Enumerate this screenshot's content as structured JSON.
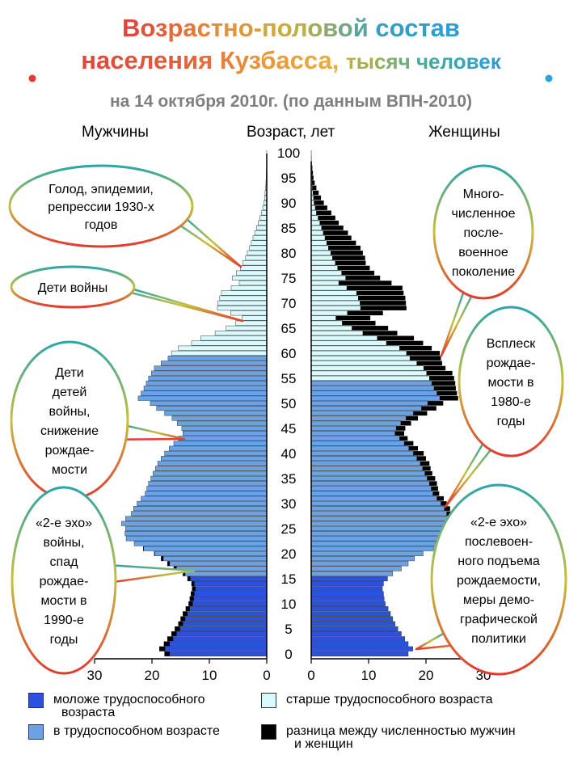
{
  "title": {
    "line1": "Возрастно-половой состав",
    "line2_main": "населения Кузбасса,",
    "line2_small": "тысяч человек"
  },
  "subtitle": "на 14 октября 2010г. (по данным ВПН-2010)",
  "headers": {
    "men": "Мужчины",
    "age": "Возраст, лет",
    "women": "Женщины"
  },
  "colors": {
    "young": "#2a52e0",
    "working": "#6aa2e6",
    "old": "#d9fbfd",
    "difference": "#000000",
    "bar_outline": "#3a3a3a"
  },
  "legend": [
    {
      "key": "young",
      "line1": "моложе трудоспособного",
      "line2": "возраста"
    },
    {
      "key": "old",
      "line1": "старше трудоспособного возраста",
      "line2": ""
    },
    {
      "key": "working",
      "line1": "в трудоспособном возрасте",
      "line2": ""
    },
    {
      "key": "difference",
      "line1": "разница между численностью мужчин",
      "line2": "и женщин"
    }
  ],
  "callouts": [
    {
      "id": "famine",
      "lines": [
        "Голод, эпидемии,",
        "репрессии 1930-х",
        "годов"
      ]
    },
    {
      "id": "war-children",
      "lines": [
        "Дети войны"
      ]
    },
    {
      "id": "war-grandchildren",
      "lines": [
        "Дети",
        "детей",
        "войны,",
        "снижение",
        "рождае-",
        "мости"
      ]
    },
    {
      "id": "echo2-left",
      "lines": [
        "«2-е эхо»",
        "войны,",
        "спад",
        "рождае-",
        "мости в",
        "1990-е",
        "годы"
      ]
    },
    {
      "id": "postwar",
      "lines": [
        "Много-",
        "численное",
        "после-",
        "военное",
        "поколение"
      ]
    },
    {
      "id": "boom80",
      "lines": [
        "Всплеск",
        "рождае-",
        "мости в",
        "1980-е",
        "годы"
      ]
    },
    {
      "id": "echo2-right",
      "lines": [
        "«2-е эхо»",
        "послевоен-",
        "ного подъема",
        "рождаемости,",
        "меры демо-",
        "графической",
        "политики"
      ]
    }
  ],
  "chart_data": {
    "type": "bar",
    "orientation": "horizontal-pyramid",
    "age_axis": {
      "label": "Возраст, лет",
      "ticks": [
        0,
        5,
        10,
        15,
        20,
        25,
        30,
        35,
        40,
        45,
        50,
        55,
        60,
        65,
        70,
        75,
        80,
        85,
        90,
        95,
        100
      ]
    },
    "x_axis_men": {
      "ticks": [
        30,
        20,
        10,
        0
      ],
      "range": [
        30,
        0
      ]
    },
    "x_axis_women": {
      "ticks": [
        0,
        10,
        20,
        30
      ],
      "range": [
        0,
        30
      ]
    },
    "working_age": {
      "men": [
        16,
        59
      ],
      "women": [
        16,
        54
      ]
    },
    "ages": [
      0,
      1,
      2,
      3,
      4,
      5,
      6,
      7,
      8,
      9,
      10,
      11,
      12,
      13,
      14,
      15,
      16,
      17,
      18,
      19,
      20,
      21,
      22,
      23,
      24,
      25,
      26,
      27,
      28,
      29,
      30,
      31,
      32,
      33,
      34,
      35,
      36,
      37,
      38,
      39,
      40,
      41,
      42,
      43,
      44,
      45,
      46,
      47,
      48,
      49,
      50,
      51,
      52,
      53,
      54,
      55,
      56,
      57,
      58,
      59,
      60,
      61,
      62,
      63,
      64,
      65,
      66,
      67,
      68,
      69,
      70,
      71,
      72,
      73,
      74,
      75,
      76,
      77,
      78,
      79,
      80,
      81,
      82,
      83,
      84,
      85,
      86,
      87,
      88,
      89,
      90,
      91,
      92,
      93,
      94,
      95,
      96,
      97,
      98,
      99,
      100
    ],
    "series": [
      {
        "name": "Мужчины",
        "values": [
          17.8,
          18.7,
          17.9,
          17.3,
          16.6,
          16.0,
          15.4,
          15.0,
          14.6,
          14.1,
          13.6,
          13.4,
          13.2,
          13.0,
          13.1,
          13.8,
          14.6,
          16.2,
          17.3,
          18.4,
          19.6,
          21.5,
          23.1,
          24.5,
          24.7,
          24.6,
          25.3,
          24.6,
          23.6,
          23.2,
          22.6,
          21.9,
          21.2,
          20.9,
          20.6,
          20.2,
          19.8,
          19.4,
          19.0,
          18.4,
          17.8,
          17.0,
          16.2,
          15.4,
          14.6,
          14.8,
          15.6,
          16.5,
          17.8,
          19.2,
          20.3,
          22.4,
          21.9,
          21.4,
          21.0,
          20.6,
          20.1,
          19.6,
          18.4,
          17.2,
          16.6,
          15.4,
          13.1,
          11.5,
          9.0,
          7.1,
          5.4,
          4.3,
          6.3,
          8.6,
          8.5,
          8.2,
          7.9,
          6.2,
          4.8,
          6.0,
          5.3,
          4.6,
          4.2,
          3.7,
          3.4,
          3.0,
          2.7,
          2.4,
          2.1,
          1.8,
          1.5,
          1.2,
          0.9,
          0.7,
          0.5,
          0.4,
          0.3,
          0.2,
          0.15,
          0.1,
          0.08,
          0.05,
          0.03,
          0.02,
          0.01
        ]
      },
      {
        "name": "Женщины",
        "values": [
          16.9,
          17.7,
          16.9,
          16.3,
          15.7,
          15.1,
          14.6,
          14.2,
          13.8,
          13.4,
          12.9,
          12.7,
          12.6,
          12.4,
          12.6,
          13.3,
          14.2,
          15.7,
          16.9,
          18.0,
          19.5,
          21.4,
          23.2,
          24.7,
          25.2,
          25.4,
          25.8,
          25.3,
          24.6,
          24.2,
          23.6,
          23.1,
          22.3,
          22.1,
          21.9,
          21.6,
          21.1,
          20.8,
          20.6,
          20.0,
          19.6,
          18.6,
          17.8,
          16.8,
          16.2,
          16.4,
          17.4,
          18.6,
          20.2,
          21.8,
          23.0,
          25.6,
          25.4,
          25.2,
          25.1,
          24.9,
          24.6,
          23.4,
          22.8,
          22.6,
          22.4,
          21.0,
          19.5,
          17.9,
          15.0,
          13.4,
          11.2,
          10.3,
          12.5,
          16.6,
          16.5,
          16.4,
          16.1,
          15.9,
          14.0,
          12.0,
          11.0,
          10.2,
          9.5,
          9.4,
          9.0,
          8.6,
          7.8,
          7.0,
          6.4,
          5.6,
          4.8,
          4.2,
          3.5,
          2.8,
          2.2,
          1.7,
          1.3,
          0.9,
          0.6,
          0.4,
          0.3,
          0.2,
          0.1,
          0.05,
          0.02
        ]
      }
    ]
  }
}
